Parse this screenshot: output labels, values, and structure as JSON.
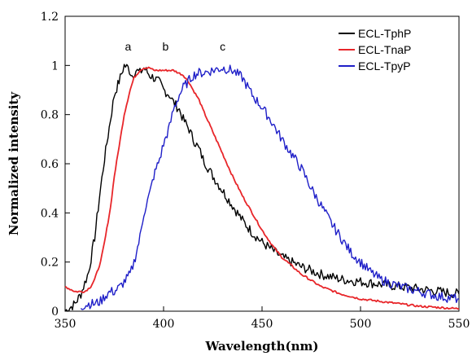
{
  "chart_data": {
    "type": "line",
    "title": "",
    "xlabel": "Wavelength(nm)",
    "ylabel": "Normalized intensity",
    "xlim": [
      350,
      550
    ],
    "ylim": [
      0,
      1.2
    ],
    "xticks": [
      350,
      400,
      450,
      500,
      550
    ],
    "yticks": [
      0,
      0.2,
      0.4,
      0.6,
      0.8,
      1,
      1.2
    ],
    "ytick_labels": [
      "0",
      "0.2",
      "0.4",
      "0.6",
      "0.8",
      "1",
      "1.2"
    ],
    "grid": false,
    "legend": {
      "position": "top-right",
      "entries": [
        "ECL-TphP",
        "ECL-TnaP",
        "ECL-TpyP"
      ]
    },
    "annotations": [
      {
        "text": "a",
        "x": 382,
        "y": 1.06
      },
      {
        "text": "b",
        "x": 401,
        "y": 1.06
      },
      {
        "text": "c",
        "x": 430,
        "y": 1.06
      }
    ],
    "series": [
      {
        "name": "ECL-TphP",
        "color": "#000000",
        "x": [
          350,
          355,
          358,
          362,
          365,
          368,
          370,
          373,
          375,
          378,
          380,
          382,
          384,
          386,
          388,
          390,
          393,
          395,
          398,
          400,
          403,
          405,
          408,
          410,
          413,
          415,
          418,
          420,
          425,
          430,
          435,
          440,
          445,
          450,
          460,
          470,
          480,
          490,
          500,
          510,
          520,
          530,
          540,
          550
        ],
        "y": [
          0.0,
          0.03,
          0.07,
          0.16,
          0.3,
          0.5,
          0.62,
          0.78,
          0.88,
          0.95,
          1.0,
          0.99,
          0.96,
          0.98,
          0.97,
          0.99,
          0.96,
          0.95,
          0.93,
          0.9,
          0.88,
          0.85,
          0.82,
          0.78,
          0.74,
          0.7,
          0.66,
          0.62,
          0.55,
          0.49,
          0.43,
          0.37,
          0.32,
          0.28,
          0.22,
          0.18,
          0.15,
          0.13,
          0.12,
          0.11,
          0.1,
          0.09,
          0.08,
          0.07
        ]
      },
      {
        "name": "ECL-TnaP",
        "color": "#e8262a",
        "x": [
          350,
          355,
          360,
          363,
          365,
          368,
          370,
          373,
          375,
          378,
          380,
          383,
          385,
          388,
          390,
          393,
          395,
          400,
          405,
          410,
          413,
          415,
          418,
          420,
          425,
          430,
          435,
          440,
          445,
          450,
          455,
          460,
          470,
          480,
          490,
          500,
          510,
          520,
          530,
          540,
          550
        ],
        "y": [
          0.1,
          0.08,
          0.08,
          0.1,
          0.13,
          0.2,
          0.28,
          0.42,
          0.55,
          0.7,
          0.8,
          0.9,
          0.95,
          0.98,
          0.99,
          0.99,
          0.98,
          0.98,
          0.98,
          0.96,
          0.93,
          0.9,
          0.86,
          0.82,
          0.73,
          0.64,
          0.55,
          0.47,
          0.4,
          0.33,
          0.27,
          0.22,
          0.15,
          0.1,
          0.07,
          0.05,
          0.04,
          0.03,
          0.02,
          0.015,
          0.01
        ]
      },
      {
        "name": "ECL-TpyP",
        "color": "#1f1fc8",
        "x": [
          358,
          362,
          365,
          368,
          370,
          373,
          375,
          378,
          380,
          383,
          385,
          388,
          390,
          393,
          395,
          398,
          400,
          403,
          405,
          408,
          410,
          413,
          415,
          418,
          420,
          425,
          430,
          435,
          440,
          445,
          450,
          455,
          460,
          465,
          470,
          475,
          480,
          485,
          490,
          495,
          500,
          505,
          510,
          520,
          530,
          540,
          550
        ],
        "y": [
          0.02,
          0.03,
          0.03,
          0.04,
          0.06,
          0.08,
          0.08,
          0.1,
          0.12,
          0.15,
          0.2,
          0.3,
          0.4,
          0.48,
          0.55,
          0.62,
          0.68,
          0.75,
          0.82,
          0.88,
          0.91,
          0.94,
          0.96,
          0.97,
          0.97,
          0.98,
          0.99,
          0.98,
          0.95,
          0.88,
          0.83,
          0.77,
          0.7,
          0.64,
          0.58,
          0.5,
          0.43,
          0.36,
          0.3,
          0.24,
          0.2,
          0.16,
          0.13,
          0.1,
          0.08,
          0.06,
          0.05
        ]
      }
    ]
  }
}
